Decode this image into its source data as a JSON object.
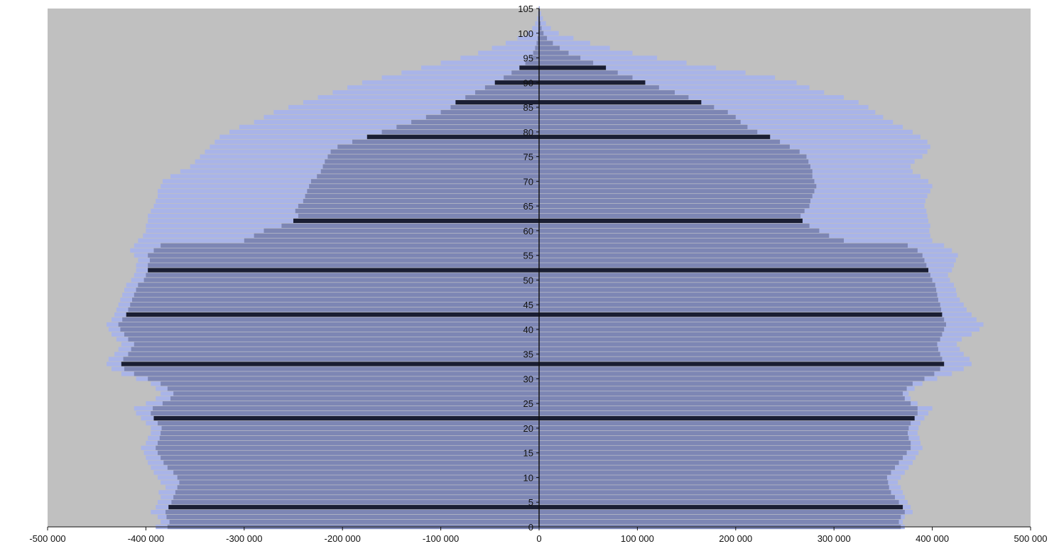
{
  "chart_data": {
    "type": "bar",
    "orientation": "horizontal",
    "title": "",
    "xlabel": "",
    "ylabel": "",
    "xlim": [
      -500000,
      500000
    ],
    "ylim": [
      0,
      105
    ],
    "grid": false,
    "legend": "none",
    "x_ticks": [
      {
        "value": -500000,
        "label": "-500 000"
      },
      {
        "value": -400000,
        "label": "-400 000"
      },
      {
        "value": -300000,
        "label": "-300 000"
      },
      {
        "value": -200000,
        "label": "-200 000"
      },
      {
        "value": -100000,
        "label": "-100 000"
      },
      {
        "value": 0,
        "label": "0"
      },
      {
        "value": 100000,
        "label": "100 000"
      },
      {
        "value": 200000,
        "label": "200 000"
      },
      {
        "value": 300000,
        "label": "300 000"
      },
      {
        "value": 400000,
        "label": "400 000"
      },
      {
        "value": 500000,
        "label": "500 000"
      }
    ],
    "y_ticks": [
      {
        "value": 0,
        "label": "0"
      },
      {
        "value": 5,
        "label": "5"
      },
      {
        "value": 10,
        "label": "10"
      },
      {
        "value": 15,
        "label": "15"
      },
      {
        "value": 20,
        "label": "20"
      },
      {
        "value": 25,
        "label": "25"
      },
      {
        "value": 30,
        "label": "30"
      },
      {
        "value": 35,
        "label": "35"
      },
      {
        "value": 40,
        "label": "40"
      },
      {
        "value": 45,
        "label": "45"
      },
      {
        "value": 50,
        "label": "50"
      },
      {
        "value": 55,
        "label": "55"
      },
      {
        "value": 60,
        "label": "60"
      },
      {
        "value": 65,
        "label": "65"
      },
      {
        "value": 70,
        "label": "70"
      },
      {
        "value": 75,
        "label": "75"
      },
      {
        "value": 80,
        "label": "80"
      },
      {
        "value": 85,
        "label": "85"
      },
      {
        "value": 90,
        "label": "90"
      },
      {
        "value": 95,
        "label": "95"
      },
      {
        "value": 100,
        "label": "100"
      },
      {
        "value": 105,
        "label": "105"
      }
    ],
    "ages": [
      0,
      1,
      2,
      3,
      4,
      5,
      6,
      7,
      8,
      9,
      10,
      11,
      12,
      13,
      14,
      15,
      16,
      17,
      18,
      19,
      20,
      21,
      22,
      23,
      24,
      25,
      26,
      27,
      28,
      29,
      30,
      31,
      32,
      33,
      34,
      35,
      36,
      37,
      38,
      39,
      40,
      41,
      42,
      43,
      44,
      45,
      46,
      47,
      48,
      49,
      50,
      51,
      52,
      53,
      54,
      55,
      56,
      57,
      58,
      59,
      60,
      61,
      62,
      63,
      64,
      65,
      66,
      67,
      68,
      69,
      70,
      71,
      72,
      73,
      74,
      75,
      76,
      77,
      78,
      79,
      80,
      81,
      82,
      83,
      84,
      85,
      86,
      87,
      88,
      89,
      90,
      91,
      92,
      93,
      94,
      95,
      96,
      97,
      98,
      99,
      100,
      101,
      102,
      103,
      104,
      105
    ],
    "series": [
      {
        "side": "left",
        "values": [
          -390000,
          -385000,
          -388000,
          -395000,
          -390000,
          -388000,
          -385000,
          -387000,
          -380000,
          -385000,
          -388000,
          -392000,
          -395000,
          -398000,
          -400000,
          -402000,
          -405000,
          -400000,
          -398000,
          -395000,
          -395000,
          -400000,
          -405000,
          -410000,
          -412000,
          -400000,
          -390000,
          -385000,
          -390000,
          -395000,
          -410000,
          -425000,
          -435000,
          -440000,
          -438000,
          -432000,
          -428000,
          -425000,
          -430000,
          -435000,
          -438000,
          -440000,
          -435000,
          -432000,
          -430000,
          -428000,
          -426000,
          -424000,
          -422000,
          -420000,
          -415000,
          -412000,
          -410000,
          -410000,
          -408000,
          -412000,
          -416000,
          -412000,
          -408000,
          -403000,
          -400000,
          -400000,
          -398000,
          -398000,
          -395000,
          -392000,
          -390000,
          -388000,
          -388000,
          -385000,
          -383000,
          -375000,
          -365000,
          -355000,
          -350000,
          -345000,
          -340000,
          -335000,
          -330000,
          -325000,
          -315000,
          -305000,
          -290000,
          -280000,
          -270000,
          -255000,
          -240000,
          -225000,
          -210000,
          -195000,
          -180000,
          -160000,
          -140000,
          -120000,
          -100000,
          -80000,
          -62000,
          -48000,
          -34000,
          -22000,
          -12000,
          -7000,
          -4000,
          -2000,
          -1000,
          -400
        ]
      },
      {
        "side": "left",
        "values": [
          -378000,
          -376000,
          -379000,
          -380000,
          -377000,
          -374000,
          -372000,
          -370000,
          -368000,
          -366000,
          -368000,
          -372000,
          -378000,
          -382000,
          -385000,
          -388000,
          -390000,
          -388000,
          -386000,
          -385000,
          -384000,
          -388000,
          -392000,
          -395000,
          -393000,
          -383000,
          -375000,
          -372000,
          -378000,
          -385000,
          -398000,
          -412000,
          -422000,
          -425000,
          -423000,
          -418000,
          -415000,
          -412000,
          -418000,
          -422000,
          -426000,
          -428000,
          -424000,
          -420000,
          -418000,
          -416000,
          -414000,
          -412000,
          -410000,
          -408000,
          -402000,
          -400000,
          -398000,
          -398000,
          -396000,
          -398000,
          -392000,
          -385000,
          -300000,
          -290000,
          -280000,
          -262000,
          -250000,
          -245000,
          -248000,
          -245000,
          -240000,
          -238000,
          -236000,
          -234000,
          -232000,
          -226000,
          -222000,
          -220000,
          -218000,
          -215000,
          -212000,
          -205000,
          -190000,
          -175000,
          -160000,
          -145000,
          -130000,
          -115000,
          -100000,
          -90000,
          -85000,
          -75000,
          -65000,
          -55000,
          -45000,
          -36000,
          -28000,
          -20000,
          -14000,
          -9000,
          -6000,
          -4000,
          -2500,
          -1500,
          -800,
          -400,
          -200,
          -100,
          -50,
          -20
        ]
      },
      {
        "side": "right",
        "values": [
          372000,
          370000,
          372000,
          380000,
          378000,
          375000,
          372000,
          370000,
          368000,
          365000,
          368000,
          372000,
          376000,
          380000,
          383000,
          386000,
          390000,
          388000,
          387000,
          385000,
          386000,
          388000,
          392000,
          396000,
          400000,
          385000,
          378000,
          376000,
          382000,
          390000,
          405000,
          420000,
          432000,
          440000,
          438000,
          432000,
          428000,
          425000,
          430000,
          440000,
          448000,
          452000,
          445000,
          440000,
          435000,
          432000,
          428000,
          425000,
          424000,
          422000,
          418000,
          416000,
          420000,
          422000,
          424000,
          426000,
          420000,
          412000,
          400000,
          398000,
          397000,
          398000,
          396000,
          395000,
          394000,
          392000,
          393000,
          395000,
          398000,
          400000,
          396000,
          388000,
          380000,
          378000,
          382000,
          390000,
          395000,
          398000,
          395000,
          388000,
          380000,
          370000,
          360000,
          350000,
          342000,
          335000,
          325000,
          310000,
          290000,
          275000,
          262000,
          240000,
          210000,
          180000,
          150000,
          120000,
          95000,
          72000,
          52000,
          35000,
          20000,
          12000,
          7000,
          4000,
          2000,
          800
        ]
      },
      {
        "side": "right",
        "values": [
          368000,
          366000,
          368000,
          372000,
          370000,
          366000,
          362000,
          358000,
          356000,
          355000,
          354000,
          358000,
          362000,
          366000,
          370000,
          374000,
          378000,
          378000,
          376000,
          375000,
          376000,
          378000,
          382000,
          385000,
          385000,
          378000,
          372000,
          370000,
          374000,
          380000,
          392000,
          402000,
          408000,
          412000,
          410000,
          408000,
          406000,
          405000,
          408000,
          410000,
          412000,
          414000,
          412000,
          410000,
          409000,
          408000,
          406000,
          405000,
          404000,
          403000,
          400000,
          398000,
          396000,
          394000,
          392000,
          390000,
          385000,
          375000,
          310000,
          295000,
          285000,
          275000,
          268000,
          266000,
          270000,
          275000,
          276000,
          278000,
          280000,
          282000,
          280000,
          278000,
          278000,
          276000,
          274000,
          272000,
          265000,
          255000,
          245000,
          235000,
          222000,
          212000,
          205000,
          200000,
          192000,
          178000,
          165000,
          152000,
          138000,
          122000,
          108000,
          95000,
          80000,
          68000,
          55000,
          42000,
          30000,
          21000,
          14000,
          8000,
          4500,
          2500,
          1500,
          800,
          400,
          150
        ]
      }
    ]
  },
  "colors": {
    "background": "#c0c0c0",
    "outer_series": "#a9b4e8",
    "inner_series": "#7d86b4",
    "dark_rows": "#1a1e33",
    "axis": "#111111"
  }
}
